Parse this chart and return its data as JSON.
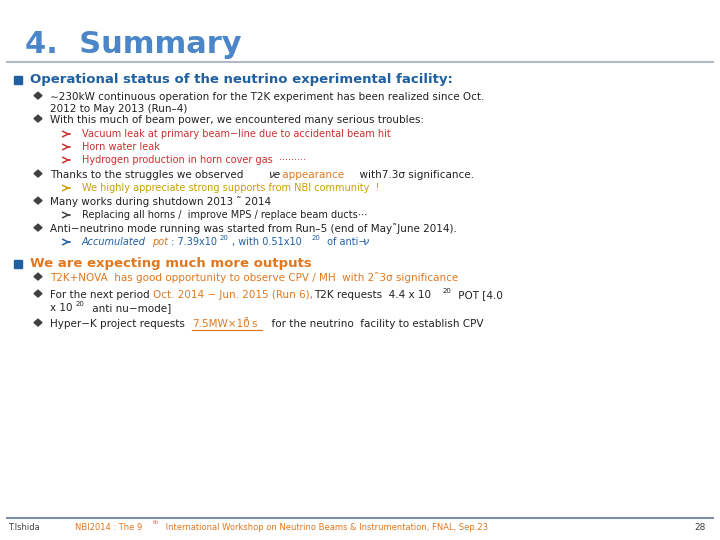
{
  "title": "4.  Summary",
  "title_color": "#4a86c8",
  "title_fontsize": 22,
  "bg_color": "#ffffff",
  "header_line_color": "#b0b8c8",
  "bullet1_color": "#2060a0",
  "bullet1_text": "Operational status of the neutrino experimental facility:",
  "bullet2_color": "#2060a0",
  "bullet2_text": "We are expecting much more outputs",
  "footer_color": "#404040",
  "orange_color": "#e07820",
  "red_color": "#cc3030",
  "green_color": "#208040",
  "blue_color": "#2060a0",
  "gold_color": "#c8a000",
  "darktext": "#222222",
  "footer_highlight": "#e07820"
}
